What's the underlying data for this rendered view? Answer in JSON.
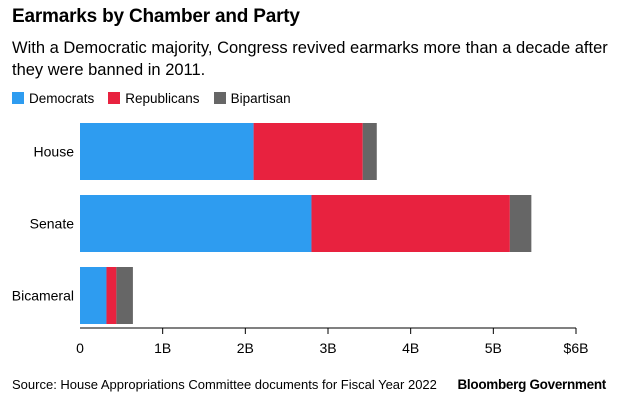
{
  "header": {
    "title": "Earmarks by Chamber and Party",
    "subtitle": "With a Democratic majority, Congress revived earmarks more than a decade after they were banned in 2011."
  },
  "legend": [
    {
      "label": "Democrats",
      "color": "#2e9cf0"
    },
    {
      "label": "Republicans",
      "color": "#e8223f"
    },
    {
      "label": "Bipartisan",
      "color": "#666666"
    }
  ],
  "chart_data": {
    "type": "bar",
    "orientation": "horizontal",
    "stacked": true,
    "categories": [
      "House",
      "Senate",
      "Bicameral"
    ],
    "series": [
      {
        "name": "Democrats",
        "color": "#2e9cf0",
        "values": [
          2.1,
          2.8,
          0.32
        ]
      },
      {
        "name": "Republicans",
        "color": "#e8223f",
        "values": [
          1.32,
          2.4,
          0.12
        ]
      },
      {
        "name": "Bipartisan",
        "color": "#666666",
        "values": [
          0.17,
          0.26,
          0.2
        ]
      }
    ],
    "xlim": [
      0,
      6
    ],
    "xticks": [
      0,
      1,
      2,
      3,
      4,
      5,
      6
    ],
    "xtick_labels": [
      "0",
      "1B",
      "2B",
      "3B",
      "4B",
      "5B",
      "$6B"
    ],
    "grid": false,
    "legend_position": "top-left"
  },
  "footer": {
    "source": "Source: House Appropriations Committee documents for Fiscal Year 2022",
    "brand": "Bloomberg Government"
  }
}
